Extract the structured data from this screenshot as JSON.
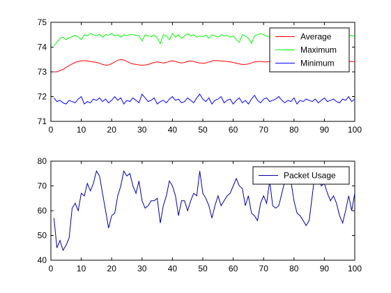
{
  "chart_data": [
    {
      "type": "line",
      "title": "",
      "xlabel": "",
      "ylabel": "",
      "xlim": [
        0,
        100
      ],
      "ylim": [
        71,
        75
      ],
      "xticks": [
        0,
        10,
        20,
        30,
        40,
        50,
        60,
        70,
        80,
        90,
        100
      ],
      "yticks": [
        71,
        72,
        73,
        74,
        75
      ],
      "grid": false,
      "legend_position": "top-right",
      "series": [
        {
          "name": "Average",
          "color": "#ff0000",
          "x": [
            1,
            2,
            3,
            4,
            5,
            6,
            7,
            8,
            9,
            10,
            11,
            12,
            13,
            14,
            15,
            16,
            17,
            18,
            19,
            20,
            21,
            22,
            23,
            24,
            25,
            26,
            27,
            28,
            29,
            30,
            31,
            32,
            33,
            34,
            35,
            36,
            37,
            38,
            39,
            40,
            41,
            42,
            43,
            44,
            45,
            46,
            47,
            48,
            49,
            50,
            51,
            52,
            53,
            54,
            55,
            56,
            57,
            58,
            59,
            60,
            61,
            62,
            63,
            64,
            65,
            66,
            67,
            68,
            69,
            70,
            71,
            72,
            73,
            74,
            75,
            76,
            77,
            78,
            79,
            80,
            81,
            82,
            83,
            84,
            85,
            86,
            87,
            88,
            89,
            90,
            91,
            92,
            93,
            94,
            95,
            96,
            97,
            98,
            99,
            100
          ],
          "values": [
            73.0,
            73.0,
            73.05,
            73.1,
            73.18,
            73.25,
            73.32,
            73.38,
            73.42,
            73.45,
            73.45,
            73.44,
            73.42,
            73.4,
            73.38,
            73.35,
            73.3,
            73.27,
            73.28,
            73.33,
            73.4,
            73.47,
            73.5,
            73.48,
            73.42,
            73.36,
            73.32,
            73.3,
            73.28,
            73.27,
            73.28,
            73.3,
            73.34,
            73.38,
            73.4,
            73.38,
            73.36,
            73.38,
            73.42,
            73.45,
            73.42,
            73.38,
            73.36,
            73.38,
            73.42,
            73.44,
            73.42,
            73.38,
            73.36,
            73.35,
            73.36,
            73.4,
            73.44,
            73.46,
            73.45,
            73.44,
            73.43,
            73.42,
            73.4,
            73.38,
            73.35,
            73.32,
            73.3,
            73.3,
            73.32,
            73.36,
            73.4,
            73.42,
            73.42,
            73.4,
            73.4,
            73.41,
            73.42,
            73.42,
            73.42,
            73.41,
            73.4,
            73.41,
            73.42,
            73.43,
            73.43,
            73.42,
            73.41,
            73.4,
            73.4,
            73.41,
            73.42,
            73.42,
            73.41,
            73.41,
            73.41,
            73.42,
            73.42,
            73.41,
            73.41,
            73.41,
            73.41,
            73.41,
            73.42,
            73.41
          ]
        },
        {
          "name": "Maximum",
          "color": "#00ff00",
          "x": [
            1,
            2,
            3,
            4,
            5,
            6,
            7,
            8,
            9,
            10,
            11,
            12,
            13,
            14,
            15,
            16,
            17,
            18,
            19,
            20,
            21,
            22,
            23,
            24,
            25,
            26,
            27,
            28,
            29,
            30,
            31,
            32,
            33,
            34,
            35,
            36,
            37,
            38,
            39,
            40,
            41,
            42,
            43,
            44,
            45,
            46,
            47,
            48,
            49,
            50,
            51,
            52,
            53,
            54,
            55,
            56,
            57,
            58,
            59,
            60,
            61,
            62,
            63,
            64,
            65,
            66,
            67,
            68,
            69,
            70,
            71,
            72,
            73,
            74,
            75,
            76,
            77,
            78,
            79,
            80,
            81,
            82,
            83,
            84,
            85,
            86,
            87,
            88,
            89,
            90,
            91,
            92,
            93,
            94,
            95,
            96,
            97,
            98,
            99,
            100
          ],
          "values": [
            74.05,
            74.2,
            74.35,
            74.4,
            74.3,
            74.38,
            74.42,
            74.48,
            74.4,
            74.3,
            74.5,
            74.45,
            74.55,
            74.5,
            74.45,
            74.52,
            74.4,
            74.5,
            74.48,
            74.55,
            74.45,
            74.5,
            74.4,
            74.5,
            74.45,
            74.52,
            74.5,
            74.48,
            74.45,
            74.25,
            74.5,
            74.45,
            74.42,
            74.48,
            74.38,
            74.15,
            74.5,
            74.45,
            74.3,
            74.55,
            74.4,
            74.5,
            74.35,
            74.45,
            74.55,
            74.45,
            74.5,
            74.4,
            74.45,
            74.42,
            74.48,
            74.35,
            74.5,
            74.45,
            74.4,
            74.5,
            74.45,
            74.48,
            74.4,
            74.45,
            74.3,
            74.2,
            74.5,
            74.45,
            74.35,
            74.15,
            74.45,
            74.5,
            74.55,
            74.5,
            74.45,
            74.4,
            74.35,
            74.45,
            74.4,
            74.45,
            74.4,
            74.45,
            74.42,
            74.45,
            74.42,
            74.45,
            74.4,
            74.45,
            74.42,
            74.45,
            74.4,
            74.45,
            74.42,
            74.45,
            74.4,
            74.45,
            74.42,
            74.45,
            74.4,
            74.45,
            74.42,
            74.45,
            74.48,
            74.42
          ]
        },
        {
          "name": "Minimum",
          "color": "#0000ff",
          "x": [
            1,
            2,
            3,
            4,
            5,
            6,
            7,
            8,
            9,
            10,
            11,
            12,
            13,
            14,
            15,
            16,
            17,
            18,
            19,
            20,
            21,
            22,
            23,
            24,
            25,
            26,
            27,
            28,
            29,
            30,
            31,
            32,
            33,
            34,
            35,
            36,
            37,
            38,
            39,
            40,
            41,
            42,
            43,
            44,
            45,
            46,
            47,
            48,
            49,
            50,
            51,
            52,
            53,
            54,
            55,
            56,
            57,
            58,
            59,
            60,
            61,
            62,
            63,
            64,
            65,
            66,
            67,
            68,
            69,
            70,
            71,
            72,
            73,
            74,
            75,
            76,
            77,
            78,
            79,
            80,
            81,
            82,
            83,
            84,
            85,
            86,
            87,
            88,
            89,
            90,
            91,
            92,
            93,
            94,
            95,
            96,
            97,
            98,
            99,
            100
          ],
          "values": [
            71.95,
            71.8,
            71.85,
            71.75,
            71.7,
            71.85,
            71.8,
            71.75,
            71.9,
            72.0,
            71.7,
            71.8,
            71.75,
            71.9,
            71.85,
            71.95,
            71.8,
            71.9,
            71.75,
            71.85,
            72.0,
            71.85,
            71.95,
            71.7,
            71.85,
            71.8,
            71.95,
            71.85,
            71.75,
            72.1,
            71.95,
            71.8,
            71.85,
            71.95,
            71.7,
            71.8,
            71.85,
            71.75,
            71.9,
            72.0,
            71.85,
            71.9,
            71.75,
            71.8,
            71.95,
            71.85,
            71.75,
            71.95,
            72.1,
            71.9,
            71.8,
            71.95,
            71.7,
            71.85,
            71.9,
            72.0,
            71.75,
            71.85,
            71.9,
            71.7,
            71.85,
            71.95,
            71.75,
            71.85,
            71.7,
            71.9,
            72.05,
            71.85,
            71.75,
            71.9,
            71.95,
            71.8,
            71.85,
            71.9,
            72.0,
            71.85,
            71.75,
            71.85,
            71.8,
            71.95,
            71.7,
            71.85,
            71.8,
            71.9,
            71.85,
            71.8,
            71.9,
            71.75,
            71.85,
            71.95,
            71.8,
            71.85,
            71.9,
            71.8,
            71.75,
            71.9,
            71.85,
            72.0,
            71.8,
            71.9
          ]
        }
      ]
    },
    {
      "type": "line",
      "title": "",
      "xlabel": "",
      "ylabel": "",
      "xlim": [
        0,
        100
      ],
      "ylim": [
        40,
        80
      ],
      "xticks": [
        0,
        10,
        20,
        30,
        40,
        50,
        60,
        70,
        80,
        90,
        100
      ],
      "yticks": [
        40,
        50,
        60,
        70,
        80
      ],
      "grid": false,
      "legend_position": "top-right",
      "series": [
        {
          "name": "Packet Usage",
          "color": "#0000a0",
          "x": [
            1,
            2,
            3,
            4,
            5,
            6,
            7,
            8,
            9,
            10,
            11,
            12,
            13,
            14,
            15,
            16,
            17,
            18,
            19,
            20,
            21,
            22,
            23,
            24,
            25,
            26,
            27,
            28,
            29,
            30,
            31,
            32,
            33,
            34,
            35,
            36,
            37,
            38,
            39,
            40,
            41,
            42,
            43,
            44,
            45,
            46,
            47,
            48,
            49,
            50,
            51,
            52,
            53,
            54,
            55,
            56,
            57,
            58,
            59,
            60,
            61,
            62,
            63,
            64,
            65,
            66,
            67,
            68,
            69,
            70,
            71,
            72,
            73,
            74,
            75,
            76,
            77,
            78,
            79,
            80,
            81,
            82,
            83,
            84,
            85,
            86,
            87,
            88,
            89,
            90,
            91,
            92,
            93,
            94,
            95,
            96,
            97,
            98,
            99,
            100
          ],
          "values": [
            57,
            45,
            48,
            44,
            46,
            49,
            61,
            63,
            60,
            67,
            66,
            71,
            68,
            71,
            76,
            74,
            67,
            60,
            53,
            58,
            59,
            66,
            70,
            76,
            74,
            75,
            70,
            67,
            72,
            64,
            61,
            62,
            64,
            64,
            65,
            55,
            62,
            66,
            72,
            70,
            66,
            58,
            64,
            64,
            60,
            64,
            67,
            66,
            76,
            67,
            65,
            62,
            57,
            62,
            66,
            62,
            64,
            66,
            67,
            70,
            73,
            70,
            69,
            62,
            66,
            59,
            58,
            56,
            63,
            66,
            63,
            72,
            62,
            61,
            62,
            67,
            72,
            74,
            72,
            64,
            59,
            58,
            56,
            54,
            56,
            66,
            76,
            74,
            70,
            71,
            67,
            64,
            66,
            63,
            58,
            55,
            60,
            66,
            60,
            67
          ]
        }
      ]
    }
  ]
}
